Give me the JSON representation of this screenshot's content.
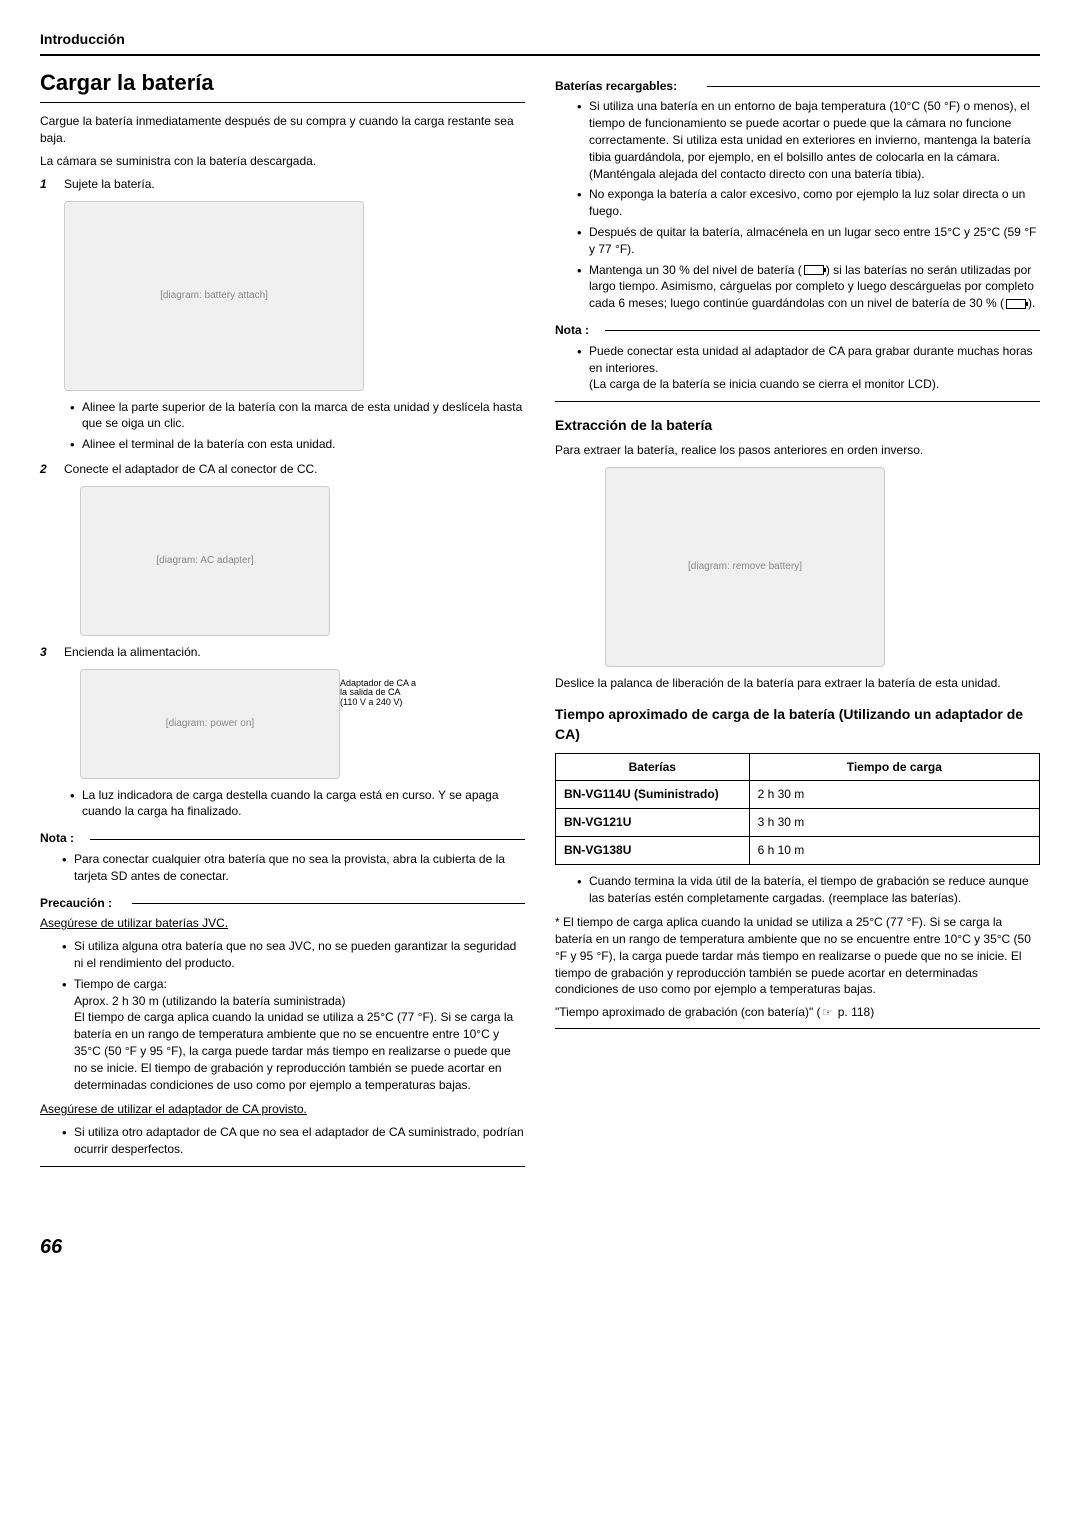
{
  "header": {
    "section": "Introducción"
  },
  "pageNumber": "66",
  "left": {
    "title": "Cargar la batería",
    "intro1": "Cargue la batería inmediatamente después de su compra y cuando la carga restante sea baja.",
    "intro2": "La cámara se suministra con la batería descargada.",
    "step1": {
      "num": "1",
      "text": "Sujete la batería."
    },
    "img1Alt": "[diagram: battery attach]",
    "step1Sub": [
      "Alinee la parte superior de la batería con la marca de esta unidad y deslícela hasta que se oiga un clic.",
      "Alinee el terminal de la batería con esta unidad."
    ],
    "step2": {
      "num": "2",
      "text": "Conecte el adaptador de CA al conector de CC."
    },
    "img2Alt": "[diagram: AC adapter]",
    "step3": {
      "num": "3",
      "text": "Encienda la alimentación."
    },
    "img3Alt": "[diagram: power on]",
    "adapterNote1": "Adaptador de CA a",
    "adapterNote2": "la salida de CA",
    "adapterNote3": "(110 V a 240 V)",
    "step3Sub": [
      "La luz indicadora de carga destella cuando la carga está en curso. Y se apaga cuando la carga ha finalizado."
    ],
    "notaLabel": "Nota :",
    "nota1": [
      "Para conectar cualquier otra batería que no sea la provista, abra la cubierta de la tarjeta SD antes de conectar."
    ],
    "precaucionLabel": "Precaución :",
    "precU1": "Asegúrese de utilizar baterías JVC.",
    "precList1": [
      "Si utiliza alguna otra batería que no sea JVC, no se pueden garantizar la seguridad ni el rendimiento del producto.",
      "Tiempo de carga:"
    ],
    "precExtra1": "Aprox. 2 h 30 m (utilizando la batería suministrada)",
    "precExtra2": "El tiempo de carga aplica cuando la unidad se utiliza a 25°C (77 °F). Si se carga la batería en un rango de temperatura ambiente que no se encuentre entre 10°C y 35°C (50 °F y 95 °F), la carga puede tardar más tiempo en realizarse o puede que no se inicie. El tiempo de grabación y reproducción también se puede acortar en determinadas condiciones de uso como por ejemplo a temperaturas bajas.",
    "precU2": "Asegúrese de utilizar el adaptador de CA provisto.",
    "precList2": [
      "Si utiliza otro adaptador de CA que no sea el adaptador de CA suministrado, podrían ocurrir desperfectos."
    ]
  },
  "right": {
    "bateriasLabel": "Baterías recargables:",
    "bateriasList": [
      "Si utiliza una batería en un entorno de baja temperatura (10°C (50 °F) o menos), el tiempo de funcionamiento se puede acortar o puede que la cámara no funcione correctamente. Si utiliza esta unidad en exteriores en invierno, mantenga la batería tibia guardándola, por ejemplo, en el bolsillo antes de colocarla en la cámara. (Manténgala alejada del contacto directo con una batería tibia).",
      "No exponga la batería a calor excesivo, como por ejemplo la luz solar directa o un fuego.",
      "Después de quitar la batería, almacénela en un lugar seco entre 15°C y 25°C (59 °F y 77 °F)."
    ],
    "bateriasLast": {
      "pre": "Mantenga un 30 % del nivel de batería (",
      "mid": ") si las baterías no serán utilizadas por largo tiempo. Asimismo, cárguelas por completo y luego descárguelas por completo cada 6 meses; luego continúe guardándolas con un nivel de batería de 30 % (",
      "post": ")."
    },
    "notaLabel": "Nota :",
    "notaList": [
      "Puede conectar esta unidad al adaptador de CA para grabar durante muchas horas en interiores."
    ],
    "notaExtra": "(La carga de la batería se inicia cuando se cierra el monitor LCD).",
    "extractTitle": "Extracción de la batería",
    "extractText": "Para extraer la batería, realice los pasos anteriores en orden inverso.",
    "img4Alt": "[diagram: remove battery]",
    "extractDesc": "Deslice la palanca de liberación de la batería para extraer la batería de esta unidad.",
    "tiempoTitle": "Tiempo aproximado de carga de la batería (Utilizando un adaptador de CA)",
    "table": {
      "h1": "Baterías",
      "h2": "Tiempo de carga",
      "rows": [
        {
          "c1": "BN-VG114U (Suministrado)",
          "c2": "2 h 30 m"
        },
        {
          "c1": "BN-VG121U",
          "c2": "3 h 30 m"
        },
        {
          "c1": "BN-VG138U",
          "c2": "6 h 10 m"
        }
      ]
    },
    "afterTable": [
      "Cuando termina la vida útil de la batería, el tiempo de grabación se reduce aunque las baterías estén completamente cargadas. (reemplace las baterías)."
    ],
    "asterisk": "* El tiempo de carga aplica cuando la unidad se utiliza a 25°C (77 °F). Si se carga la batería en un rango de temperatura ambiente que no se encuentre entre 10°C y 35°C (50 °F y 95 °F), la carga puede tardar más tiempo en realizarse o puede que no se inicie. El tiempo de grabación y reproducción también se puede acortar en determinadas condiciones de uso como por ejemplo a temperaturas bajas.",
    "ref": {
      "pre": "\"Tiempo aproximado de grabación (con batería)\" (",
      "page": " p. 118)"
    }
  }
}
